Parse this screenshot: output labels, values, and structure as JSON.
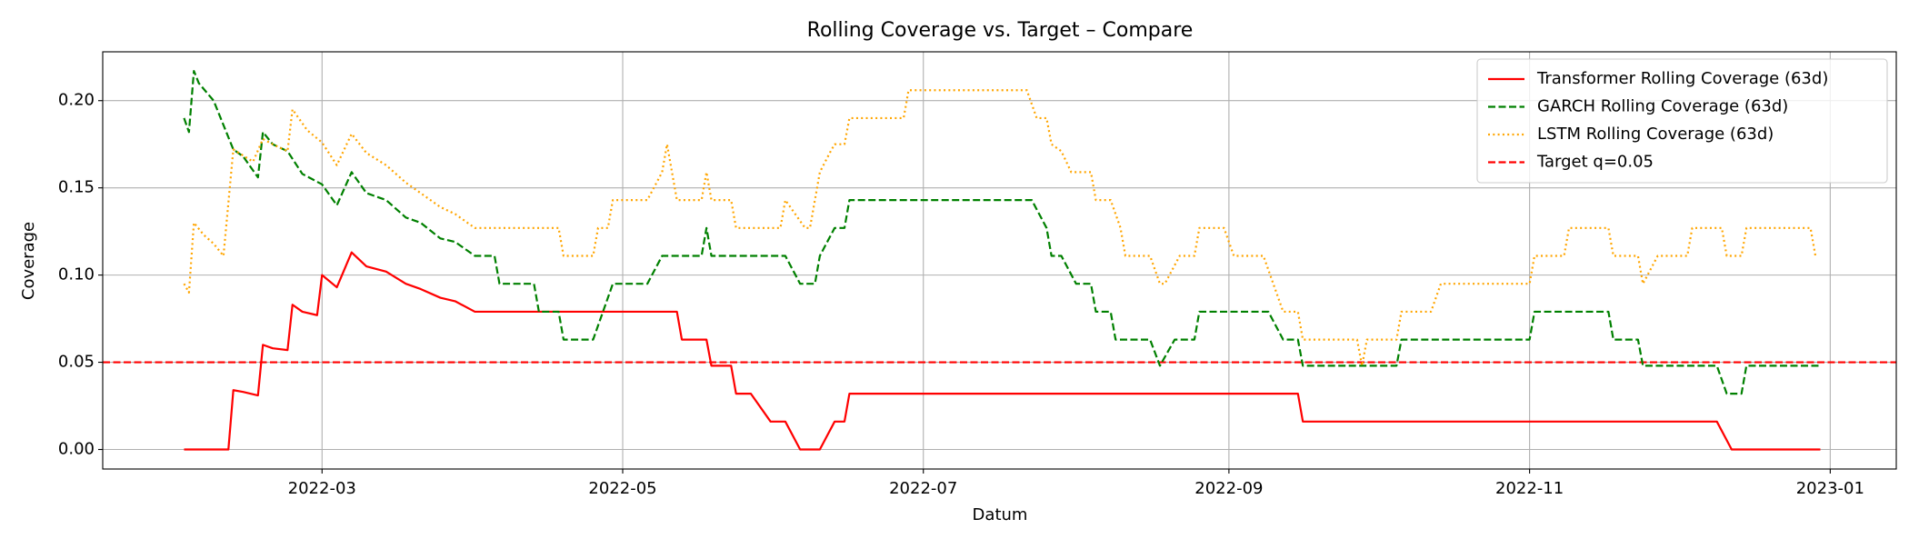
{
  "chart_data": {
    "type": "line",
    "title": "Rolling Coverage vs. Target – Compare",
    "x_label": "Datum",
    "y_label": "Coverage",
    "xlim": [
      19007.5,
      19371.4
    ],
    "xticks": [
      {
        "value": 19052,
        "label": "2022-03"
      },
      {
        "value": 19113,
        "label": "2022-05"
      },
      {
        "value": 19174,
        "label": "2022-07"
      },
      {
        "value": 19236,
        "label": "2022-09"
      },
      {
        "value": 19297,
        "label": "2022-11"
      },
      {
        "value": 19358,
        "label": "2023-01"
      }
    ],
    "ylim": [
      -0.0112,
      0.228
    ],
    "yticks": [
      {
        "value": 0,
        "label": "0.00"
      },
      {
        "value": 0.05,
        "label": "0.05"
      },
      {
        "value": 0.1,
        "label": "0.10"
      },
      {
        "value": 0.15,
        "label": "0.15"
      },
      {
        "value": 0.2,
        "label": "0.20"
      }
    ],
    "grid": true,
    "legend_loc": "upper right",
    "series": [
      {
        "name": "Transformer Rolling Coverage (63d)",
        "color": "red",
        "linestyle": "solid",
        "x": [
          19024,
          19033,
          19034,
          19036,
          19039,
          19040,
          19042,
          19045,
          19046,
          19048,
          19051,
          19052,
          19055,
          19058,
          19061,
          19065,
          19069,
          19072,
          19076,
          19079,
          19083,
          19124,
          19125,
          19130,
          19131,
          19135,
          19136,
          19139,
          19143,
          19146,
          19149,
          19153,
          19156,
          19158,
          19159,
          19250,
          19251,
          19335,
          19338,
          19356
        ],
        "values": [
          0,
          0,
          0.034,
          0.033,
          0.031,
          0.06,
          0.058,
          0.057,
          0.083,
          0.079,
          0.077,
          0.1,
          0.093,
          0.113,
          0.105,
          0.102,
          0.095,
          0.092,
          0.087,
          0.085,
          0.079,
          0.079,
          0.063,
          0.063,
          0.048,
          0.048,
          0.032,
          0.032,
          0.016,
          0.016,
          0,
          0,
          0.016,
          0.016,
          0.032,
          0.032,
          0.016,
          0.016,
          0,
          0
        ]
      },
      {
        "name": "GARCH Rolling Coverage (63d)",
        "color": "green",
        "linestyle": "dashed",
        "x": [
          19024,
          19025,
          19026,
          19027,
          19030,
          19034,
          19036,
          19039,
          19040,
          19042,
          19045,
          19048,
          19052,
          19055,
          19058,
          19061,
          19065,
          19069,
          19072,
          19076,
          19079,
          19083,
          19087,
          19088,
          19095,
          19096,
          19100,
          19101,
          19107,
          19111,
          19118,
          19121,
          19129,
          19130,
          19131,
          19146,
          19149,
          19152,
          19153,
          19156,
          19158,
          19159,
          19196,
          19199,
          19200,
          19202,
          19205,
          19208,
          19209,
          19212,
          19213,
          19220,
          19222,
          19225,
          19229,
          19230,
          19244,
          19247,
          19250,
          19251,
          19270,
          19271,
          19297,
          19298,
          19313,
          19314,
          19319,
          19320,
          19335,
          19337,
          19340,
          19341,
          19356
        ],
        "values": [
          0.19,
          0.182,
          0.217,
          0.21,
          0.2,
          0.172,
          0.168,
          0.156,
          0.182,
          0.175,
          0.171,
          0.158,
          0.152,
          0.14,
          0.159,
          0.147,
          0.143,
          0.133,
          0.13,
          0.121,
          0.119,
          0.111,
          0.111,
          0.095,
          0.095,
          0.079,
          0.079,
          0.063,
          0.063,
          0.095,
          0.095,
          0.111,
          0.111,
          0.127,
          0.111,
          0.111,
          0.095,
          0.095,
          0.111,
          0.127,
          0.127,
          0.143,
          0.143,
          0.127,
          0.111,
          0.111,
          0.095,
          0.095,
          0.079,
          0.079,
          0.063,
          0.063,
          0.048,
          0.063,
          0.063,
          0.079,
          0.079,
          0.063,
          0.063,
          0.048,
          0.048,
          0.063,
          0.063,
          0.079,
          0.079,
          0.063,
          0.063,
          0.048,
          0.048,
          0.032,
          0.032,
          0.048,
          0.048
        ]
      },
      {
        "name": "LSTM Rolling Coverage (63d)",
        "color": "orange",
        "linestyle": "dotted",
        "x": [
          19024,
          19025,
          19026,
          19028,
          19030,
          19032,
          19034,
          19038,
          19040,
          19042,
          19045,
          19046,
          19049,
          19052,
          19055,
          19058,
          19061,
          19065,
          19069,
          19072,
          19076,
          19079,
          19083,
          19100,
          19101,
          19107,
          19108,
          19110,
          19111,
          19118,
          19121,
          19122,
          19124,
          19129,
          19130,
          19131,
          19135,
          19136,
          19145,
          19146,
          19148,
          19150,
          19151,
          19153,
          19155,
          19156,
          19158,
          19159,
          19170,
          19171,
          19195,
          19197,
          19199,
          19200,
          19202,
          19204,
          19208,
          19209,
          19212,
          19214,
          19215,
          19220,
          19222,
          19223,
          19226,
          19229,
          19230,
          19235,
          19237,
          19243,
          19245,
          19247,
          19250,
          19251,
          19262,
          19263,
          19264,
          19270,
          19271,
          19277,
          19279,
          19297,
          19298,
          19304,
          19305,
          19313,
          19314,
          19319,
          19320,
          19323,
          19329,
          19330,
          19336,
          19337,
          19340,
          19341,
          19354,
          19355
        ],
        "values": [
          0.095,
          0.09,
          0.13,
          0.123,
          0.118,
          0.111,
          0.172,
          0.165,
          0.178,
          0.175,
          0.171,
          0.195,
          0.183,
          0.176,
          0.163,
          0.181,
          0.17,
          0.163,
          0.153,
          0.147,
          0.139,
          0.135,
          0.127,
          0.127,
          0.111,
          0.111,
          0.127,
          0.127,
          0.143,
          0.143,
          0.159,
          0.175,
          0.143,
          0.143,
          0.159,
          0.143,
          0.143,
          0.127,
          0.127,
          0.143,
          0.135,
          0.127,
          0.127,
          0.159,
          0.17,
          0.175,
          0.175,
          0.19,
          0.19,
          0.206,
          0.206,
          0.19,
          0.19,
          0.175,
          0.171,
          0.159,
          0.159,
          0.143,
          0.143,
          0.127,
          0.111,
          0.111,
          0.095,
          0.095,
          0.111,
          0.111,
          0.127,
          0.127,
          0.111,
          0.111,
          0.095,
          0.079,
          0.079,
          0.063,
          0.063,
          0.048,
          0.063,
          0.063,
          0.079,
          0.079,
          0.095,
          0.095,
          0.111,
          0.111,
          0.127,
          0.127,
          0.111,
          0.111,
          0.095,
          0.111,
          0.111,
          0.127,
          0.127,
          0.111,
          0.111,
          0.127,
          0.127,
          0.111
        ]
      }
    ],
    "hlines": [
      {
        "name": "Target q=0.05",
        "y": 0.05,
        "color": "red",
        "linestyle": "dashed"
      }
    ]
  }
}
